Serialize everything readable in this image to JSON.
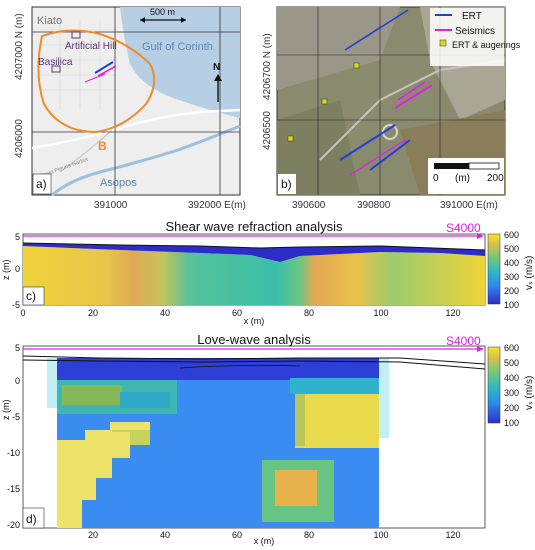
{
  "panel_a": {
    "label": "a)",
    "places": {
      "kiato": "Kiato",
      "artificial_hill": "Artificial Hill",
      "basilica": "Basilica",
      "gulf": "Gulf of Corinth",
      "asopos": "Asopos",
      "road": "Street Pleuris-Harbor",
      "site": "B"
    },
    "scale_label": "500 m",
    "north": "N",
    "y_ticks": [
      "4207000 N (m)",
      "4206000"
    ],
    "x_ticks": [
      "391000",
      "392000 E(m)"
    ],
    "colors": {
      "sea": "#b7cfe4",
      "land": "#eeeeee",
      "outline": "#f08a2a",
      "river": "#9cc0dd"
    }
  },
  "panel_b": {
    "label": "b)",
    "legend": [
      {
        "label": "ERT",
        "color": "#1f3fd8"
      },
      {
        "label": "Seismics",
        "color": "#e020e8"
      },
      {
        "label": "ERT & augerings",
        "color": "#d8d820"
      }
    ],
    "y_ticks": [
      "4206700 N (m)",
      "4206500"
    ],
    "x_ticks": [
      "390600",
      "390800",
      "391000 E(m)"
    ],
    "scale": {
      "start": "0",
      "unit": "(m)",
      "end": "200"
    }
  },
  "panel_c": {
    "label": "c)",
    "title": "Shear wave refraction analysis",
    "profile": "S4000",
    "x_label": "x (m)",
    "z_label": "z (m)",
    "cbar_label": "vₛ (m/s)",
    "cbar_ticks": [
      "600",
      "500",
      "400",
      "300",
      "200",
      "100"
    ],
    "z_ticks": [
      "5",
      "0",
      "-5"
    ],
    "x_ticks": [
      "0",
      "20",
      "40",
      "60",
      "80",
      "100",
      "120"
    ]
  },
  "panel_d": {
    "label": "d)",
    "title": "Love-wave analysis",
    "profile": "S4000",
    "x_label": "x (m)",
    "z_label": "z (m)",
    "cbar_label": "vₛ (m/s)",
    "cbar_ticks": [
      "600",
      "500",
      "400",
      "300",
      "200",
      "100"
    ],
    "z_ticks": [
      "5",
      "0",
      "-5",
      "-10",
      "-15",
      "-20"
    ],
    "x_ticks": [
      "20",
      "40",
      "60",
      "80",
      "100",
      "120"
    ]
  },
  "colormap": [
    "#2e2cc8",
    "#3270ee",
    "#2da5d8",
    "#3bbfa4",
    "#8ac865",
    "#e0bf48",
    "#f8e028"
  ]
}
